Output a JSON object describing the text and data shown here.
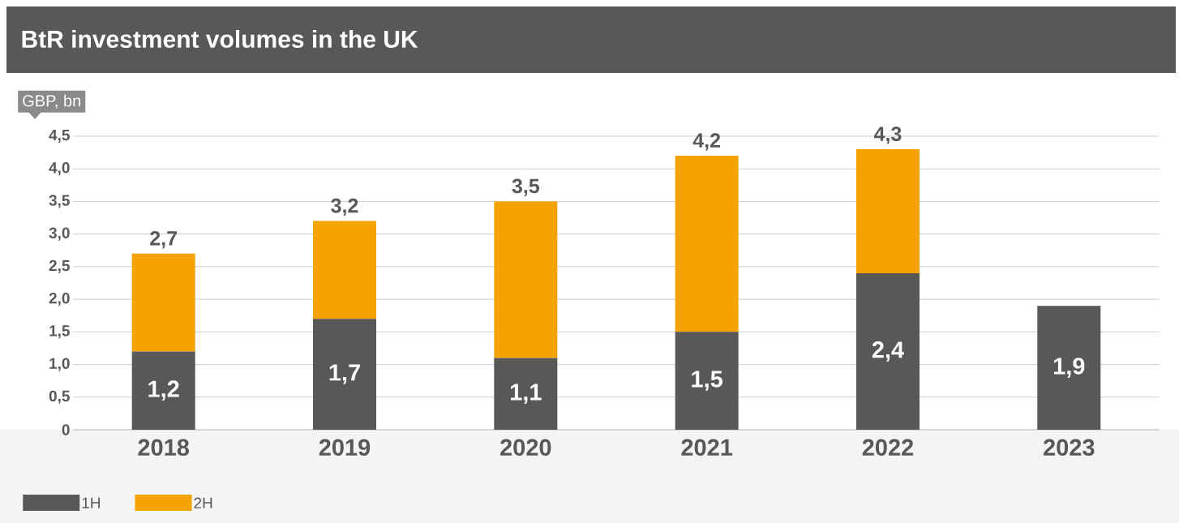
{
  "chart_data": {
    "type": "bar",
    "title": "BtR investment volumes in the UK",
    "ylabel": "GBP, bn",
    "categories": [
      "2018",
      "2019",
      "2020",
      "2021",
      "2022",
      "2023"
    ],
    "stacked": true,
    "series": [
      {
        "name": "1H",
        "color": "#595856",
        "values": [
          1.2,
          1.7,
          1.1,
          1.5,
          2.4,
          1.9
        ],
        "value_labels": [
          "1,2",
          "1,7",
          "1,1",
          "1,5",
          "2,4",
          "1,9"
        ]
      },
      {
        "name": "2H",
        "color": "#f5a300",
        "values": [
          1.5,
          1.5,
          2.4,
          2.7,
          1.9,
          null
        ]
      }
    ],
    "totals": [
      "2,7",
      "3,2",
      "3,5",
      "4,2",
      "4,3",
      null
    ],
    "ylim": [
      0,
      4.5
    ],
    "yticks": [
      {
        "value": 0,
        "label": "0"
      },
      {
        "value": 0.5,
        "label": "0,5"
      },
      {
        "value": 1,
        "label": "1,0"
      },
      {
        "value": 1.5,
        "label": "1,5"
      },
      {
        "value": 2,
        "label": "2,0"
      },
      {
        "value": 2.5,
        "label": "2,5"
      },
      {
        "value": 3,
        "label": "3,0"
      },
      {
        "value": 3.5,
        "label": "3,5"
      },
      {
        "value": 4,
        "label": "4,0"
      },
      {
        "value": 4.5,
        "label": "4,5"
      }
    ],
    "grid": "y",
    "legend": "bottom left"
  }
}
